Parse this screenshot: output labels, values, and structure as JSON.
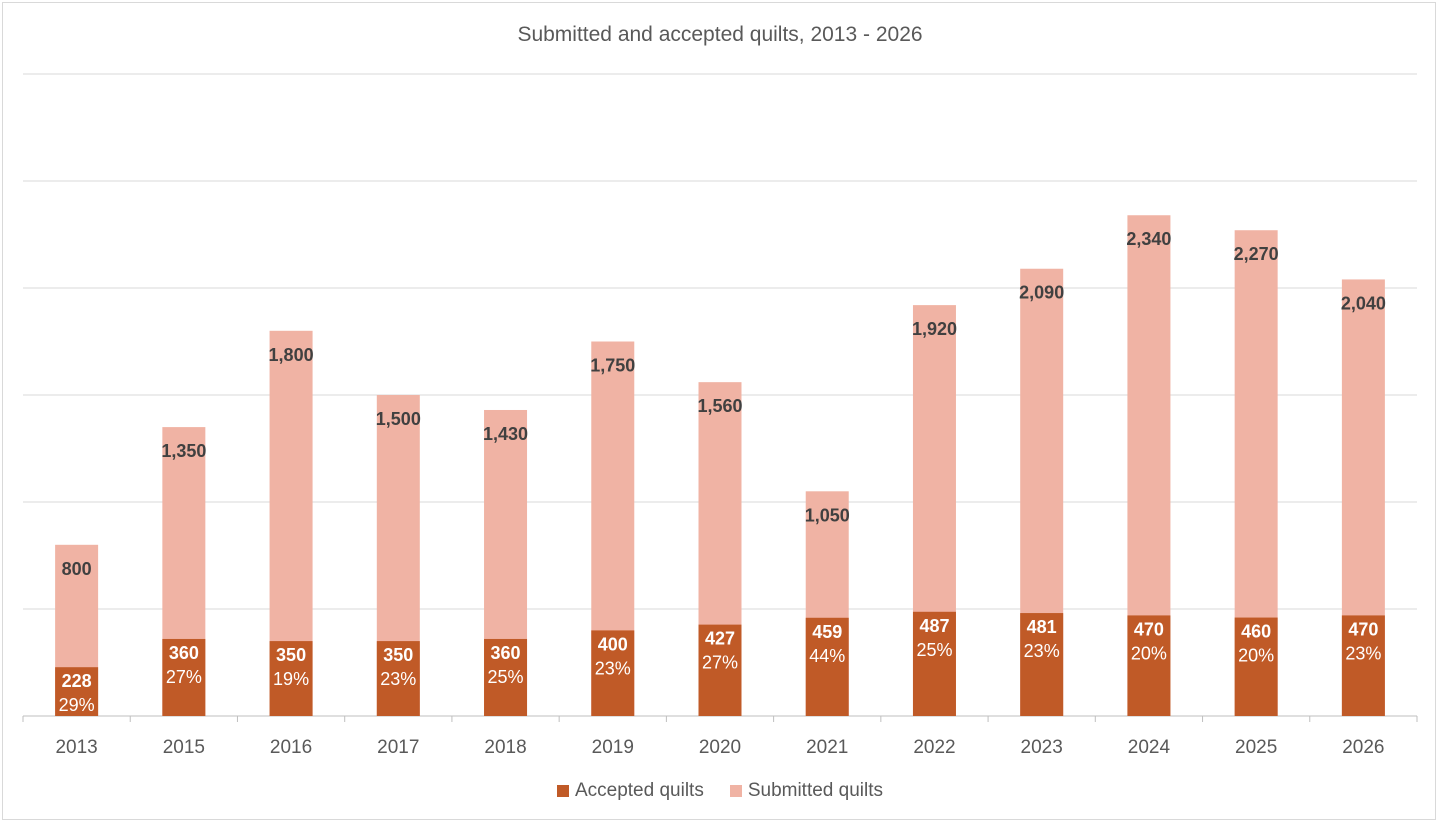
{
  "chart_data": {
    "type": "bar",
    "stacked": true,
    "title": "Submitted and accepted quilts, 2013 - 2026",
    "categories": [
      "2013",
      "2015",
      "2016",
      "2017",
      "2018",
      "2019",
      "2020",
      "2021",
      "2022",
      "2023",
      "2024",
      "2025",
      "2026"
    ],
    "series": [
      {
        "name": "Accepted quilts",
        "color": "#c05a27",
        "values": [
          228,
          360,
          350,
          350,
          360,
          400,
          427,
          459,
          487,
          481,
          470,
          460,
          470
        ],
        "value_labels": [
          "228",
          "360",
          "350",
          "350",
          "360",
          "400",
          "427",
          "459",
          "487",
          "481",
          "470",
          "460",
          "470"
        ],
        "percent_labels": [
          "29%",
          "27%",
          "19%",
          "23%",
          "25%",
          "23%",
          "27%",
          "44%",
          "25%",
          "23%",
          "20%",
          "20%",
          "23%"
        ]
      },
      {
        "name": "Submitted quilts",
        "color": "#f0b3a4",
        "values": [
          800,
          1350,
          1800,
          1500,
          1430,
          1750,
          1560,
          1050,
          1920,
          2090,
          2340,
          2270,
          2040
        ],
        "value_labels": [
          "800",
          "1,350",
          "1,800",
          "1,500",
          "1,430",
          "1,750",
          "1,560",
          "1,050",
          "1,920",
          "2,090",
          "2,340",
          "2,270",
          "2,040"
        ]
      }
    ],
    "ylim": [
      0,
      3000
    ],
    "grid": true,
    "legend_position": "bottom",
    "xlabel": "",
    "ylabel": ""
  }
}
